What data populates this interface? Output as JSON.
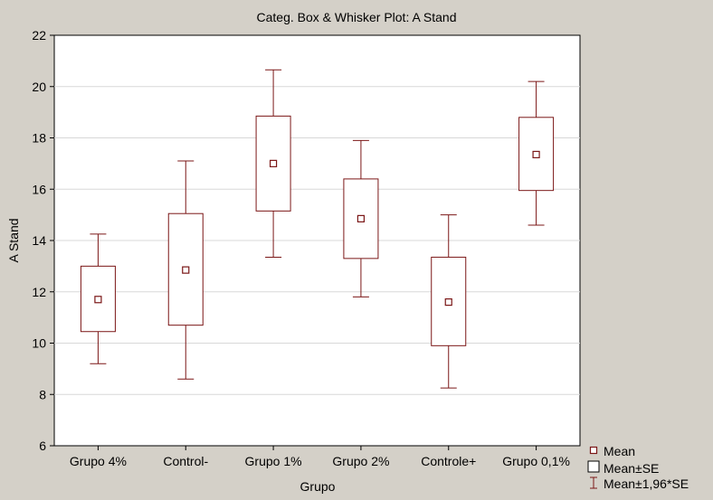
{
  "chart_data": {
    "type": "box",
    "title": "Categ. Box & Whisker Plot: A Stand",
    "xlabel": "Grupo",
    "ylabel": "A Stand",
    "ylim": [
      6,
      22
    ],
    "yticks": [
      6,
      8,
      10,
      12,
      14,
      16,
      18,
      20,
      22
    ],
    "grid": true,
    "legend_position": "bottom-right",
    "categories": [
      "Grupo 4%",
      "Control-",
      "Grupo 1%",
      "Grupo 2%",
      "Controle+",
      "Grupo 0,1%"
    ],
    "series": [
      {
        "category": "Grupo 4%",
        "mean": 11.7,
        "se_low": 10.45,
        "se_high": 13.0,
        "ci_low": 9.2,
        "ci_high": 14.25
      },
      {
        "category": "Control-",
        "mean": 12.85,
        "se_low": 10.7,
        "se_high": 15.05,
        "ci_low": 8.6,
        "ci_high": 17.1
      },
      {
        "category": "Grupo 1%",
        "mean": 17.0,
        "se_low": 15.15,
        "se_high": 18.85,
        "ci_low": 13.35,
        "ci_high": 20.65
      },
      {
        "category": "Grupo 2%",
        "mean": 14.85,
        "se_low": 13.3,
        "se_high": 16.4,
        "ci_low": 11.8,
        "ci_high": 17.9
      },
      {
        "category": "Controle+",
        "mean": 11.6,
        "se_low": 9.9,
        "se_high": 13.35,
        "ci_low": 8.25,
        "ci_high": 15.0
      },
      {
        "category": "Grupo 0,1%",
        "mean": 17.35,
        "se_low": 15.95,
        "se_high": 18.8,
        "ci_low": 14.6,
        "ci_high": 20.2
      }
    ],
    "legend": [
      {
        "symbol": "mean-marker",
        "label": "Mean"
      },
      {
        "symbol": "se-box",
        "label": "Mean±SE"
      },
      {
        "symbol": "ci-whisker",
        "label": "Mean±1,96*SE"
      }
    ],
    "colors": {
      "background": "#d4d0c8",
      "plot_background": "#ffffff",
      "gridline": "#d8d8d8",
      "series": "#7b1717",
      "axis": "#000000"
    }
  }
}
